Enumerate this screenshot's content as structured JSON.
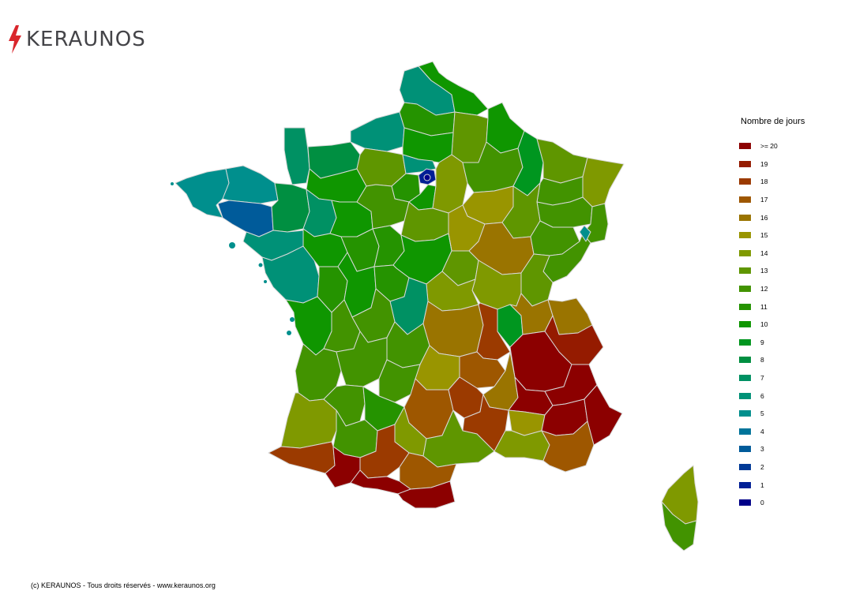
{
  "brand": {
    "name": "KERAUNOS",
    "accent": "#d9262c"
  },
  "legend": {
    "title": "Nombre de jours",
    "items": [
      {
        "label": ">= 20",
        "color": "#8c0000"
      },
      {
        "label": "19",
        "color": "#951b00"
      },
      {
        "label": "18",
        "color": "#9b3a00"
      },
      {
        "label": "17",
        "color": "#9e5700"
      },
      {
        "label": "16",
        "color": "#9a7400"
      },
      {
        "label": "15",
        "color": "#999500"
      },
      {
        "label": "14",
        "color": "#7f9900"
      },
      {
        "label": "13",
        "color": "#5f9600"
      },
      {
        "label": "12",
        "color": "#429300"
      },
      {
        "label": "11",
        "color": "#259300"
      },
      {
        "label": "10",
        "color": "#0f9600"
      },
      {
        "label": "9",
        "color": "#00961f"
      },
      {
        "label": "8",
        "color": "#008f41"
      },
      {
        "label": "7",
        "color": "#009163"
      },
      {
        "label": "6",
        "color": "#009177"
      },
      {
        "label": "5",
        "color": "#008f8d"
      },
      {
        "label": "4",
        "color": "#00749a"
      },
      {
        "label": "3",
        "color": "#005b9a"
      },
      {
        "label": "2",
        "color": "#003a97"
      },
      {
        "label": "1",
        "color": "#001f96"
      },
      {
        "label": "0",
        "color": "#000089"
      }
    ]
  },
  "footer": "(c) KERAUNOS - Tous droits réservés - www.keraunos.org"
}
